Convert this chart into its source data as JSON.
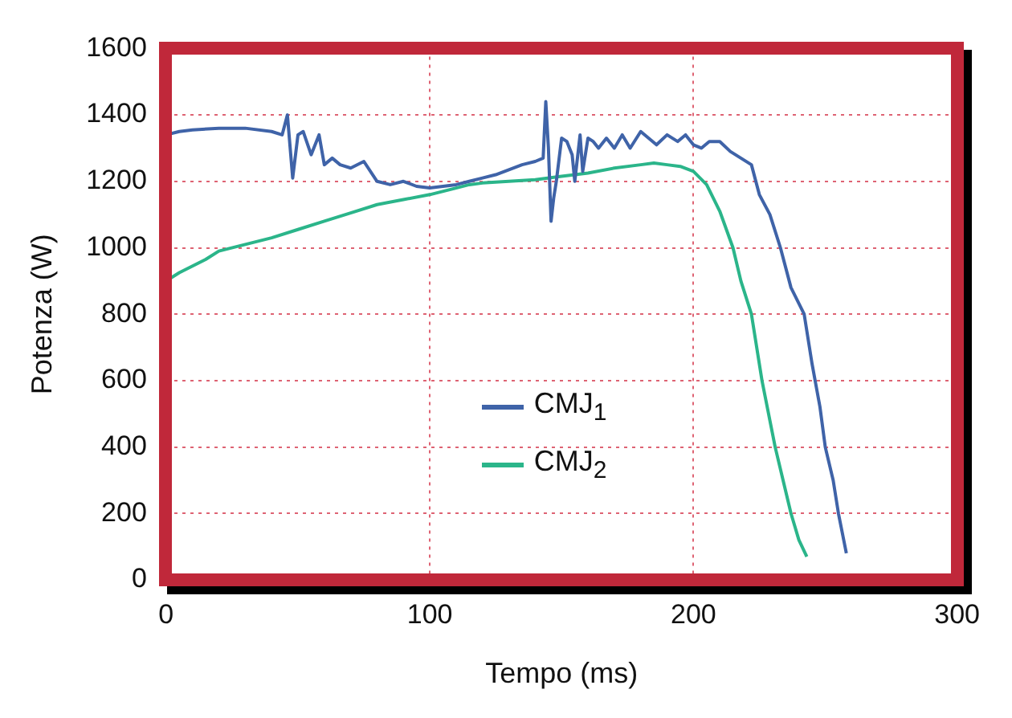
{
  "chart_data": {
    "type": "line",
    "xlabel": "Tempo (ms)",
    "ylabel": "Potenza (W)",
    "xlim": [
      0,
      300
    ],
    "xticks": [
      0,
      100,
      200,
      300
    ],
    "ylim": [
      0,
      1600
    ],
    "yticks": [
      0,
      200,
      400,
      600,
      800,
      1000,
      1200,
      1400,
      1600
    ],
    "grid": true,
    "legend": "center",
    "marker": "none",
    "line_style": "solid",
    "series": [
      {
        "name": "CMJ$_{1}$",
        "color": "#3f63a8",
        "x": [
          0,
          5,
          10,
          20,
          30,
          40,
          44,
          46,
          48,
          50,
          52,
          55,
          58,
          60,
          63,
          66,
          70,
          75,
          80,
          85,
          90,
          95,
          100,
          105,
          110,
          115,
          120,
          125,
          130,
          135,
          140,
          143,
          144,
          145,
          146,
          147,
          148,
          150,
          152,
          154,
          155,
          157,
          158,
          160,
          162,
          164,
          167,
          170,
          173,
          176,
          180,
          183,
          186,
          190,
          194,
          197,
          200,
          203,
          206,
          210,
          214,
          218,
          222,
          225,
          229,
          233,
          237,
          242,
          245,
          248,
          250,
          253,
          255,
          258
        ],
        "values": [
          1340,
          1350,
          1355,
          1360,
          1360,
          1350,
          1340,
          1400,
          1210,
          1340,
          1350,
          1280,
          1340,
          1250,
          1270,
          1250,
          1240,
          1260,
          1200,
          1190,
          1200,
          1185,
          1180,
          1185,
          1190,
          1200,
          1210,
          1220,
          1235,
          1250,
          1260,
          1270,
          1440,
          1300,
          1080,
          1150,
          1200,
          1330,
          1320,
          1280,
          1200,
          1340,
          1230,
          1330,
          1320,
          1300,
          1330,
          1300,
          1340,
          1300,
          1350,
          1330,
          1310,
          1340,
          1320,
          1340,
          1310,
          1300,
          1320,
          1320,
          1290,
          1270,
          1250,
          1160,
          1100,
          1000,
          880,
          800,
          650,
          520,
          400,
          300,
          200,
          80
        ]
      },
      {
        "name": "CMJ$_{2}$",
        "color": "#2bb58a",
        "x": [
          0,
          5,
          10,
          15,
          20,
          30,
          40,
          50,
          60,
          70,
          80,
          90,
          100,
          110,
          115,
          120,
          130,
          140,
          150,
          160,
          170,
          180,
          185,
          190,
          195,
          200,
          205,
          210,
          215,
          218,
          222,
          226,
          229,
          231,
          234,
          237,
          240,
          243
        ],
        "values": [
          900,
          925,
          945,
          965,
          990,
          1010,
          1030,
          1055,
          1080,
          1105,
          1130,
          1145,
          1160,
          1180,
          1190,
          1195,
          1200,
          1205,
          1215,
          1225,
          1240,
          1250,
          1255,
          1250,
          1245,
          1230,
          1190,
          1110,
          1000,
          900,
          800,
          600,
          480,
          400,
          300,
          200,
          120,
          70
        ]
      }
    ]
  }
}
